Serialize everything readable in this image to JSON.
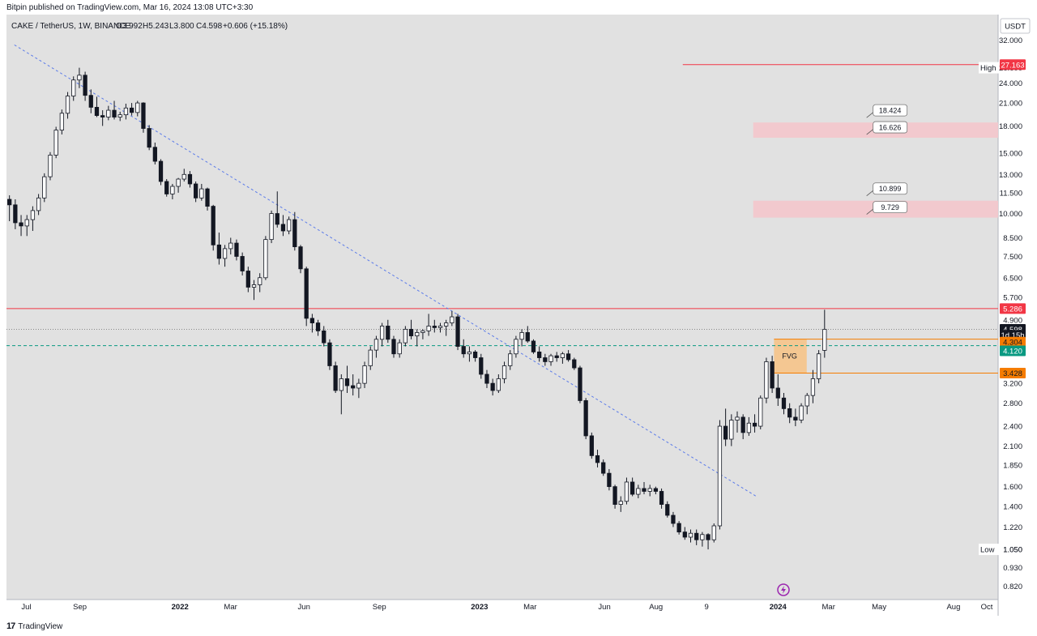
{
  "header": {
    "text": "Bitpin published on TradingView.com, Mar 16, 2024 13:08 UTC+3:30"
  },
  "legend": {
    "symbol": "CAKE / TetherUS, 1W, BINANCE",
    "open": "O3.992",
    "high": "H5.243",
    "low": "L3.800",
    "close": "C4.598",
    "change": "+0.606 (+15.18%)"
  },
  "footer": {
    "logo": "17",
    "brand": "TradingView"
  },
  "chart_data": {
    "type": "candlestick",
    "scale": "log",
    "ylim": [
      0.75,
      38
    ],
    "currency_label": "USDT",
    "y_ticks": [
      "32.000",
      "26.600",
      "24.000",
      "21.000",
      "18.000",
      "15.000",
      "13.000",
      "11.500",
      "10.000",
      "8.500",
      "7.500",
      "6.500",
      "5.700",
      "4.900",
      "3.200",
      "2.800",
      "2.400",
      "2.100",
      "1.850",
      "1.600",
      "1.400",
      "1.220",
      "1.050",
      "0.930",
      "0.820"
    ],
    "x_ticks": [
      {
        "label": "Jul",
        "t": 0.02,
        "bold": false
      },
      {
        "label": "Sep",
        "t": 0.074,
        "bold": false
      },
      {
        "label": "2022",
        "t": 0.175,
        "bold": true
      },
      {
        "label": "Mar",
        "t": 0.226,
        "bold": false
      },
      {
        "label": "Jun",
        "t": 0.3,
        "bold": false
      },
      {
        "label": "Sep",
        "t": 0.376,
        "bold": false
      },
      {
        "label": "2023",
        "t": 0.477,
        "bold": true
      },
      {
        "label": "Mar",
        "t": 0.528,
        "bold": false
      },
      {
        "label": "Jun",
        "t": 0.603,
        "bold": false
      },
      {
        "label": "Aug",
        "t": 0.655,
        "bold": false
      },
      {
        "label": "9",
        "t": 0.706,
        "bold": false
      },
      {
        "label": "2024",
        "t": 0.778,
        "bold": true
      },
      {
        "label": "Mar",
        "t": 0.829,
        "bold": false
      },
      {
        "label": "May",
        "t": 0.88,
        "bold": false
      },
      {
        "label": "Aug",
        "t": 0.955,
        "bold": false
      },
      {
        "label": "Oct",
        "t": 1.0,
        "bold": false
      }
    ],
    "price_tags": [
      {
        "text": "27.163",
        "price": 27.163,
        "bg": "#f23645",
        "fg": "#ffffff"
      },
      {
        "text": "5.286",
        "price": 5.286,
        "bg": "#f23645",
        "fg": "#ffffff"
      },
      {
        "text": "4.598",
        "price": 4.598,
        "bg": "#131722",
        "fg": "#ffffff"
      },
      {
        "text": "1d 15h",
        "price": 4.42,
        "bg": "#131722",
        "fg": "#ffffff"
      },
      {
        "text": "4.304",
        "price": 4.22,
        "bg": "#f57c00",
        "fg": "#131722"
      },
      {
        "text": "4.120",
        "price": 3.98,
        "bg": "#089981",
        "fg": "#ffffff"
      },
      {
        "text": "3.428",
        "price": 3.428,
        "bg": "#f57c00",
        "fg": "#131722"
      }
    ],
    "high_label": {
      "label": "High",
      "value": "26.600",
      "price": 26.6
    },
    "low_label": {
      "label": "Low",
      "value": "1.050",
      "price": 1.05
    },
    "horizontal_lines": [
      {
        "price": 5.286,
        "color": "#f23645",
        "style": "solid",
        "from": 0.0,
        "to": 1.0
      },
      {
        "price": 4.598,
        "color": "#888888",
        "style": "dotted",
        "from": 0.0,
        "to": 1.0
      },
      {
        "price": 4.12,
        "color": "#089981",
        "style": "dashed",
        "from": 0.0,
        "to": 1.0
      },
      {
        "price": 27.163,
        "color": "#f23645",
        "style": "solid",
        "from": 0.682,
        "to": 0.982
      }
    ],
    "zones": [
      {
        "top": 18.424,
        "bottom": 16.626,
        "color": "#f4c7cc",
        "upper_label": "18.424",
        "lower_label": "16.626",
        "from": 0.753,
        "to": 1.0
      },
      {
        "top": 10.899,
        "bottom": 9.729,
        "color": "#f4c7cc",
        "upper_label": "10.899",
        "lower_label": "9.729",
        "from": 0.753,
        "to": 1.0
      }
    ],
    "fvg": {
      "label": "FVG",
      "top": 4.304,
      "bottom": 3.428,
      "from": 0.774,
      "to": 0.807,
      "line_to": 1.0,
      "color": "#f6c48a"
    },
    "trendline": {
      "t1": 0.008,
      "p1": 31.0,
      "t2": 0.756,
      "p2": 1.5,
      "color": "#5b7be9"
    },
    "candles": [
      [
        11.0,
        11.3,
        9.5,
        10.6
      ],
      [
        10.6,
        11.0,
        9.0,
        9.4
      ],
      [
        9.4,
        9.9,
        8.6,
        9.2
      ],
      [
        9.2,
        9.9,
        8.6,
        9.6
      ],
      [
        9.6,
        10.5,
        8.9,
        10.2
      ],
      [
        10.2,
        11.4,
        9.9,
        11.1
      ],
      [
        11.1,
        13.1,
        10.8,
        12.8
      ],
      [
        12.8,
        15.1,
        12.5,
        14.8
      ],
      [
        14.8,
        17.9,
        14.5,
        17.5
      ],
      [
        17.5,
        20.1,
        17.0,
        19.6
      ],
      [
        19.6,
        22.6,
        18.9,
        22.0
      ],
      [
        22.0,
        25.1,
        21.3,
        24.5
      ],
      [
        24.5,
        26.6,
        23.2,
        25.3
      ],
      [
        25.3,
        25.9,
        21.3,
        22.1
      ],
      [
        22.1,
        23.0,
        19.6,
        20.4
      ],
      [
        20.4,
        21.9,
        19.1,
        19.3
      ],
      [
        19.3,
        20.0,
        18.0,
        19.1
      ],
      [
        19.1,
        20.6,
        18.7,
        20.0
      ],
      [
        20.0,
        21.3,
        18.8,
        19.1
      ],
      [
        19.1,
        19.8,
        18.6,
        19.4
      ],
      [
        19.4,
        20.9,
        18.8,
        20.3
      ],
      [
        20.3,
        21.0,
        19.3,
        19.7
      ],
      [
        19.7,
        21.3,
        19.2,
        21.0
      ],
      [
        21.0,
        21.1,
        17.2,
        17.7
      ],
      [
        17.7,
        18.1,
        15.3,
        15.6
      ],
      [
        15.6,
        16.1,
        13.9,
        14.2
      ],
      [
        14.2,
        14.4,
        12.1,
        12.4
      ],
      [
        12.4,
        12.6,
        11.2,
        11.4
      ],
      [
        11.4,
        12.2,
        11.0,
        12.0
      ],
      [
        12.0,
        12.7,
        11.5,
        12.6
      ],
      [
        12.6,
        13.5,
        12.4,
        13.0
      ],
      [
        13.0,
        13.3,
        11.9,
        12.2
      ],
      [
        12.2,
        12.4,
        10.8,
        11.1
      ],
      [
        11.1,
        12.2,
        10.9,
        11.8
      ],
      [
        11.8,
        11.9,
        10.2,
        10.5
      ],
      [
        10.5,
        10.6,
        7.8,
        8.1
      ],
      [
        8.1,
        8.8,
        7.1,
        7.4
      ],
      [
        7.4,
        8.1,
        7.0,
        7.9
      ],
      [
        7.9,
        8.5,
        7.6,
        8.2
      ],
      [
        8.2,
        8.4,
        7.3,
        7.5
      ],
      [
        7.5,
        7.7,
        6.6,
        6.8
      ],
      [
        6.8,
        7.0,
        5.9,
        6.1
      ],
      [
        6.1,
        6.4,
        5.6,
        6.2
      ],
      [
        6.2,
        6.7,
        5.9,
        6.5
      ],
      [
        6.5,
        8.6,
        6.4,
        8.4
      ],
      [
        8.4,
        10.2,
        8.2,
        10.0
      ],
      [
        10.0,
        11.6,
        9.1,
        9.3
      ],
      [
        9.3,
        9.9,
        8.6,
        8.9
      ],
      [
        8.9,
        9.8,
        8.7,
        9.6
      ],
      [
        9.6,
        10.1,
        7.8,
        8.0
      ],
      [
        8.0,
        8.1,
        6.7,
        6.9
      ],
      [
        6.9,
        7.0,
        4.7,
        4.95
      ],
      [
        4.95,
        5.1,
        4.5,
        4.8
      ],
      [
        4.8,
        4.9,
        4.4,
        4.55
      ],
      [
        4.55,
        4.7,
        4.1,
        4.2
      ],
      [
        4.2,
        4.3,
        3.5,
        3.6
      ],
      [
        3.6,
        3.7,
        3.0,
        3.05
      ],
      [
        3.05,
        3.4,
        2.6,
        3.3
      ],
      [
        3.3,
        3.6,
        3.0,
        3.15
      ],
      [
        3.15,
        3.4,
        2.95,
        3.1
      ],
      [
        3.1,
        3.3,
        2.9,
        3.2
      ],
      [
        3.2,
        3.7,
        3.1,
        3.6
      ],
      [
        3.6,
        4.1,
        3.5,
        4.0
      ],
      [
        4.0,
        4.4,
        3.8,
        4.3
      ],
      [
        4.3,
        4.8,
        4.1,
        4.7
      ],
      [
        4.7,
        4.9,
        4.2,
        4.3
      ],
      [
        4.3,
        4.4,
        3.8,
        3.9
      ],
      [
        3.9,
        4.3,
        3.8,
        4.2
      ],
      [
        4.2,
        4.7,
        4.1,
        4.6
      ],
      [
        4.6,
        4.9,
        4.3,
        4.4
      ],
      [
        4.4,
        4.6,
        4.1,
        4.5
      ],
      [
        4.5,
        4.6,
        4.3,
        4.55
      ],
      [
        4.55,
        5.1,
        4.4,
        4.7
      ],
      [
        4.7,
        4.9,
        4.5,
        4.65
      ],
      [
        4.65,
        4.8,
        4.5,
        4.7
      ],
      [
        4.7,
        4.9,
        4.4,
        4.8
      ],
      [
        4.8,
        5.2,
        4.7,
        5.0
      ],
      [
        5.0,
        5.1,
        4.0,
        4.1
      ],
      [
        4.1,
        4.3,
        3.8,
        3.9
      ],
      [
        3.9,
        4.1,
        3.7,
        3.95
      ],
      [
        3.95,
        4.0,
        3.7,
        3.8
      ],
      [
        3.8,
        3.9,
        3.3,
        3.4
      ],
      [
        3.4,
        3.5,
        3.1,
        3.2
      ],
      [
        3.2,
        3.3,
        2.95,
        3.05
      ],
      [
        3.05,
        3.4,
        3.0,
        3.3
      ],
      [
        3.3,
        3.7,
        3.2,
        3.6
      ],
      [
        3.6,
        4.0,
        3.5,
        3.9
      ],
      [
        3.9,
        4.4,
        3.8,
        4.3
      ],
      [
        4.3,
        4.6,
        4.1,
        4.5
      ],
      [
        4.5,
        4.7,
        4.2,
        4.25
      ],
      [
        4.25,
        4.3,
        3.9,
        3.95
      ],
      [
        3.95,
        4.1,
        3.7,
        3.8
      ],
      [
        3.8,
        3.9,
        3.6,
        3.7
      ],
      [
        3.7,
        3.9,
        3.6,
        3.85
      ],
      [
        3.85,
        3.95,
        3.7,
        3.8
      ],
      [
        3.8,
        3.95,
        3.65,
        3.9
      ],
      [
        3.9,
        4.0,
        3.7,
        3.75
      ],
      [
        3.75,
        3.8,
        3.5,
        3.55
      ],
      [
        3.55,
        3.6,
        2.8,
        2.85
      ],
      [
        2.85,
        2.9,
        2.2,
        2.25
      ],
      [
        2.25,
        2.3,
        1.93,
        1.97
      ],
      [
        1.97,
        2.05,
        1.82,
        1.88
      ],
      [
        1.88,
        1.92,
        1.72,
        1.75
      ],
      [
        1.75,
        1.8,
        1.56,
        1.6
      ],
      [
        1.6,
        1.62,
        1.38,
        1.42
      ],
      [
        1.42,
        1.5,
        1.35,
        1.45
      ],
      [
        1.45,
        1.7,
        1.42,
        1.65
      ],
      [
        1.65,
        1.7,
        1.5,
        1.52
      ],
      [
        1.52,
        1.62,
        1.48,
        1.58
      ],
      [
        1.58,
        1.65,
        1.52,
        1.55
      ],
      [
        1.55,
        1.62,
        1.5,
        1.58
      ],
      [
        1.58,
        1.6,
        1.52,
        1.55
      ],
      [
        1.55,
        1.58,
        1.38,
        1.42
      ],
      [
        1.42,
        1.45,
        1.3,
        1.32
      ],
      [
        1.32,
        1.35,
        1.22,
        1.25
      ],
      [
        1.25,
        1.27,
        1.16,
        1.18
      ],
      [
        1.18,
        1.22,
        1.12,
        1.14
      ],
      [
        1.14,
        1.2,
        1.1,
        1.17
      ],
      [
        1.17,
        1.2,
        1.08,
        1.12
      ],
      [
        1.12,
        1.18,
        1.07,
        1.16
      ],
      [
        1.16,
        1.17,
        1.05,
        1.12
      ],
      [
        1.12,
        1.25,
        1.1,
        1.23
      ],
      [
        1.23,
        2.5,
        1.2,
        2.4
      ],
      [
        2.4,
        2.7,
        2.1,
        2.2
      ],
      [
        2.2,
        2.6,
        2.1,
        2.5
      ],
      [
        2.5,
        2.65,
        2.3,
        2.55
      ],
      [
        2.55,
        2.6,
        2.2,
        2.3
      ],
      [
        2.3,
        2.55,
        2.25,
        2.45
      ],
      [
        2.45,
        2.6,
        2.3,
        2.4
      ],
      [
        2.4,
        2.95,
        2.35,
        2.9
      ],
      [
        2.9,
        3.8,
        2.8,
        3.7
      ],
      [
        3.7,
        3.85,
        3.0,
        3.1
      ],
      [
        3.1,
        3.4,
        2.75,
        2.9
      ],
      [
        2.9,
        3.0,
        2.6,
        2.7
      ],
      [
        2.7,
        2.8,
        2.45,
        2.55
      ],
      [
        2.55,
        2.7,
        2.4,
        2.5
      ],
      [
        2.5,
        2.8,
        2.45,
        2.75
      ],
      [
        2.75,
        3.0,
        2.6,
        2.95
      ],
      [
        2.95,
        3.5,
        2.8,
        3.3
      ],
      [
        3.3,
        4.0,
        3.2,
        3.9
      ],
      [
        3.992,
        5.243,
        3.8,
        4.598
      ]
    ],
    "candle_t_start": 0.003,
    "candle_t_end": 0.825
  }
}
